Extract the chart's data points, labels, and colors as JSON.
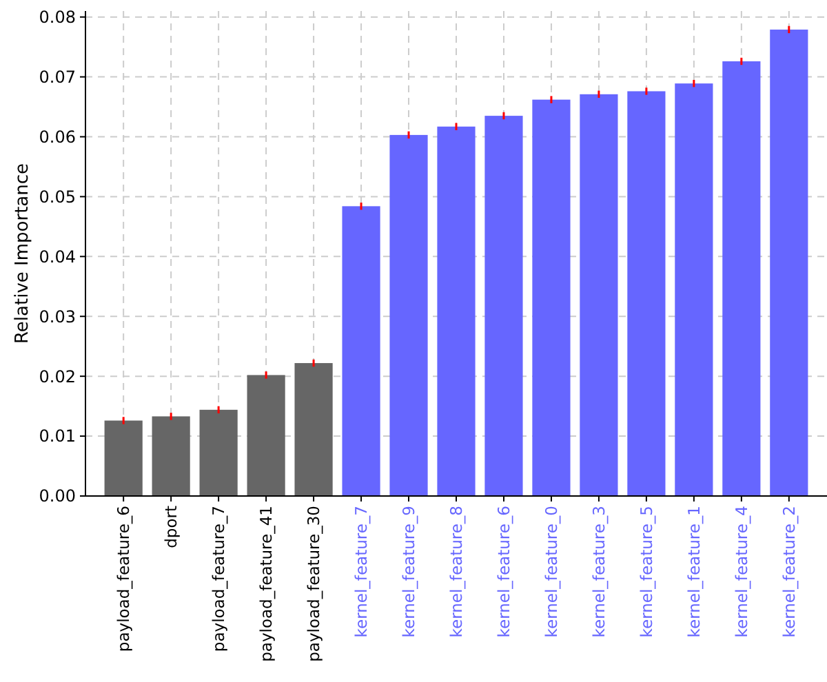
{
  "chart_data": {
    "type": "bar",
    "ylabel": "Relative Importance",
    "categories": [
      "payload_feature_6",
      "dport",
      "payload_feature_7",
      "payload_feature_41",
      "payload_feature_30",
      "kernel_feature_7",
      "kernel_feature_9",
      "kernel_feature_8",
      "kernel_feature_6",
      "kernel_feature_0",
      "kernel_feature_3",
      "kernel_feature_5",
      "kernel_feature_1",
      "kernel_feature_4",
      "kernel_feature_2"
    ],
    "values": [
      0.0126,
      0.0133,
      0.0144,
      0.0202,
      0.0222,
      0.0484,
      0.0603,
      0.0617,
      0.0635,
      0.0662,
      0.0671,
      0.0676,
      0.0689,
      0.0726,
      0.0779
    ],
    "colors": [
      "#666666",
      "#666666",
      "#666666",
      "#666666",
      "#666666",
      "#6666ff",
      "#6666ff",
      "#6666ff",
      "#6666ff",
      "#6666ff",
      "#6666ff",
      "#6666ff",
      "#6666ff",
      "#6666ff",
      "#6666ff"
    ],
    "errors": [
      0.0006,
      0.0006,
      0.0006,
      0.0006,
      0.0006,
      0.0006,
      0.0006,
      0.0006,
      0.0006,
      0.0006,
      0.0006,
      0.0006,
      0.0006,
      0.0006,
      0.0006
    ],
    "ylim": [
      0,
      0.081
    ],
    "yticks": [
      {
        "value": 0,
        "label": "0.00"
      },
      {
        "value": 0.01,
        "label": "0.01"
      },
      {
        "value": 0.02,
        "label": "0.02"
      },
      {
        "value": 0.03,
        "label": "0.03"
      },
      {
        "value": 0.04,
        "label": "0.04"
      },
      {
        "value": 0.05,
        "label": "0.05"
      },
      {
        "value": 0.06,
        "label": "0.06"
      },
      {
        "value": 0.07,
        "label": "0.07"
      },
      {
        "value": 0.08,
        "label": "0.08"
      }
    ],
    "grid": true
  }
}
